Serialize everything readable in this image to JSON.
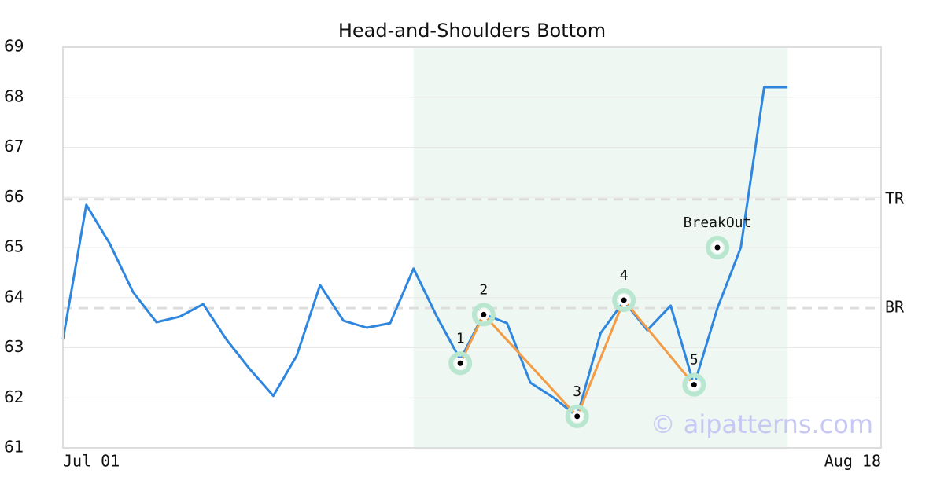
{
  "chart_data": {
    "type": "line",
    "title": "Head-and-Shoulders Bottom",
    "categories": [
      "Jul 01",
      null,
      null,
      null,
      null,
      null,
      null,
      null,
      null,
      null,
      null,
      null,
      null,
      null,
      null,
      null,
      null,
      null,
      null,
      null,
      null,
      null,
      null,
      null,
      null,
      null,
      null,
      null,
      null,
      null,
      null,
      null,
      null,
      null,
      null,
      "Aug 18"
    ],
    "series": [
      {
        "color": "#2e86de",
        "values": [
          63.16,
          65.85,
          65.08,
          64.11,
          63.51,
          63.62,
          63.87,
          63.16,
          62.57,
          62.04,
          62.84,
          64.25,
          63.54,
          63.4,
          63.49,
          64.58,
          63.62,
          62.76,
          63.67,
          63.49,
          62.3,
          62.0,
          61.63,
          63.29,
          63.93,
          63.35,
          63.84,
          62.25,
          63.79,
          65.0,
          68.2,
          68.2,
          null,
          null,
          null,
          null
        ]
      }
    ],
    "ylim": [
      61,
      69
    ],
    "yticks": [
      61,
      62,
      63,
      64,
      65,
      66,
      67,
      68,
      69
    ],
    "grid": true,
    "highlight": [
      15,
      31
    ],
    "highlight_color": "#eef7f2",
    "levels": [
      {
        "label": "TR",
        "value": 65.96
      },
      {
        "label": "BR",
        "value": 63.79
      }
    ],
    "pattern": {
      "color": "#f39c45",
      "marker_color": "#b8e6cf",
      "points": [
        {
          "label": "1",
          "index": 17,
          "y": 62.69
        },
        {
          "label": "2",
          "index": 18,
          "y": 63.66
        },
        {
          "label": "3",
          "index": 22,
          "y": 61.63
        },
        {
          "label": "4",
          "index": 24,
          "y": 63.95
        },
        {
          "label": "5",
          "index": 27,
          "y": 62.26
        }
      ],
      "breakout": {
        "label": "BreakOut",
        "index": 28,
        "y": 65.0
      }
    },
    "watermark": "© aipatterns.com"
  }
}
